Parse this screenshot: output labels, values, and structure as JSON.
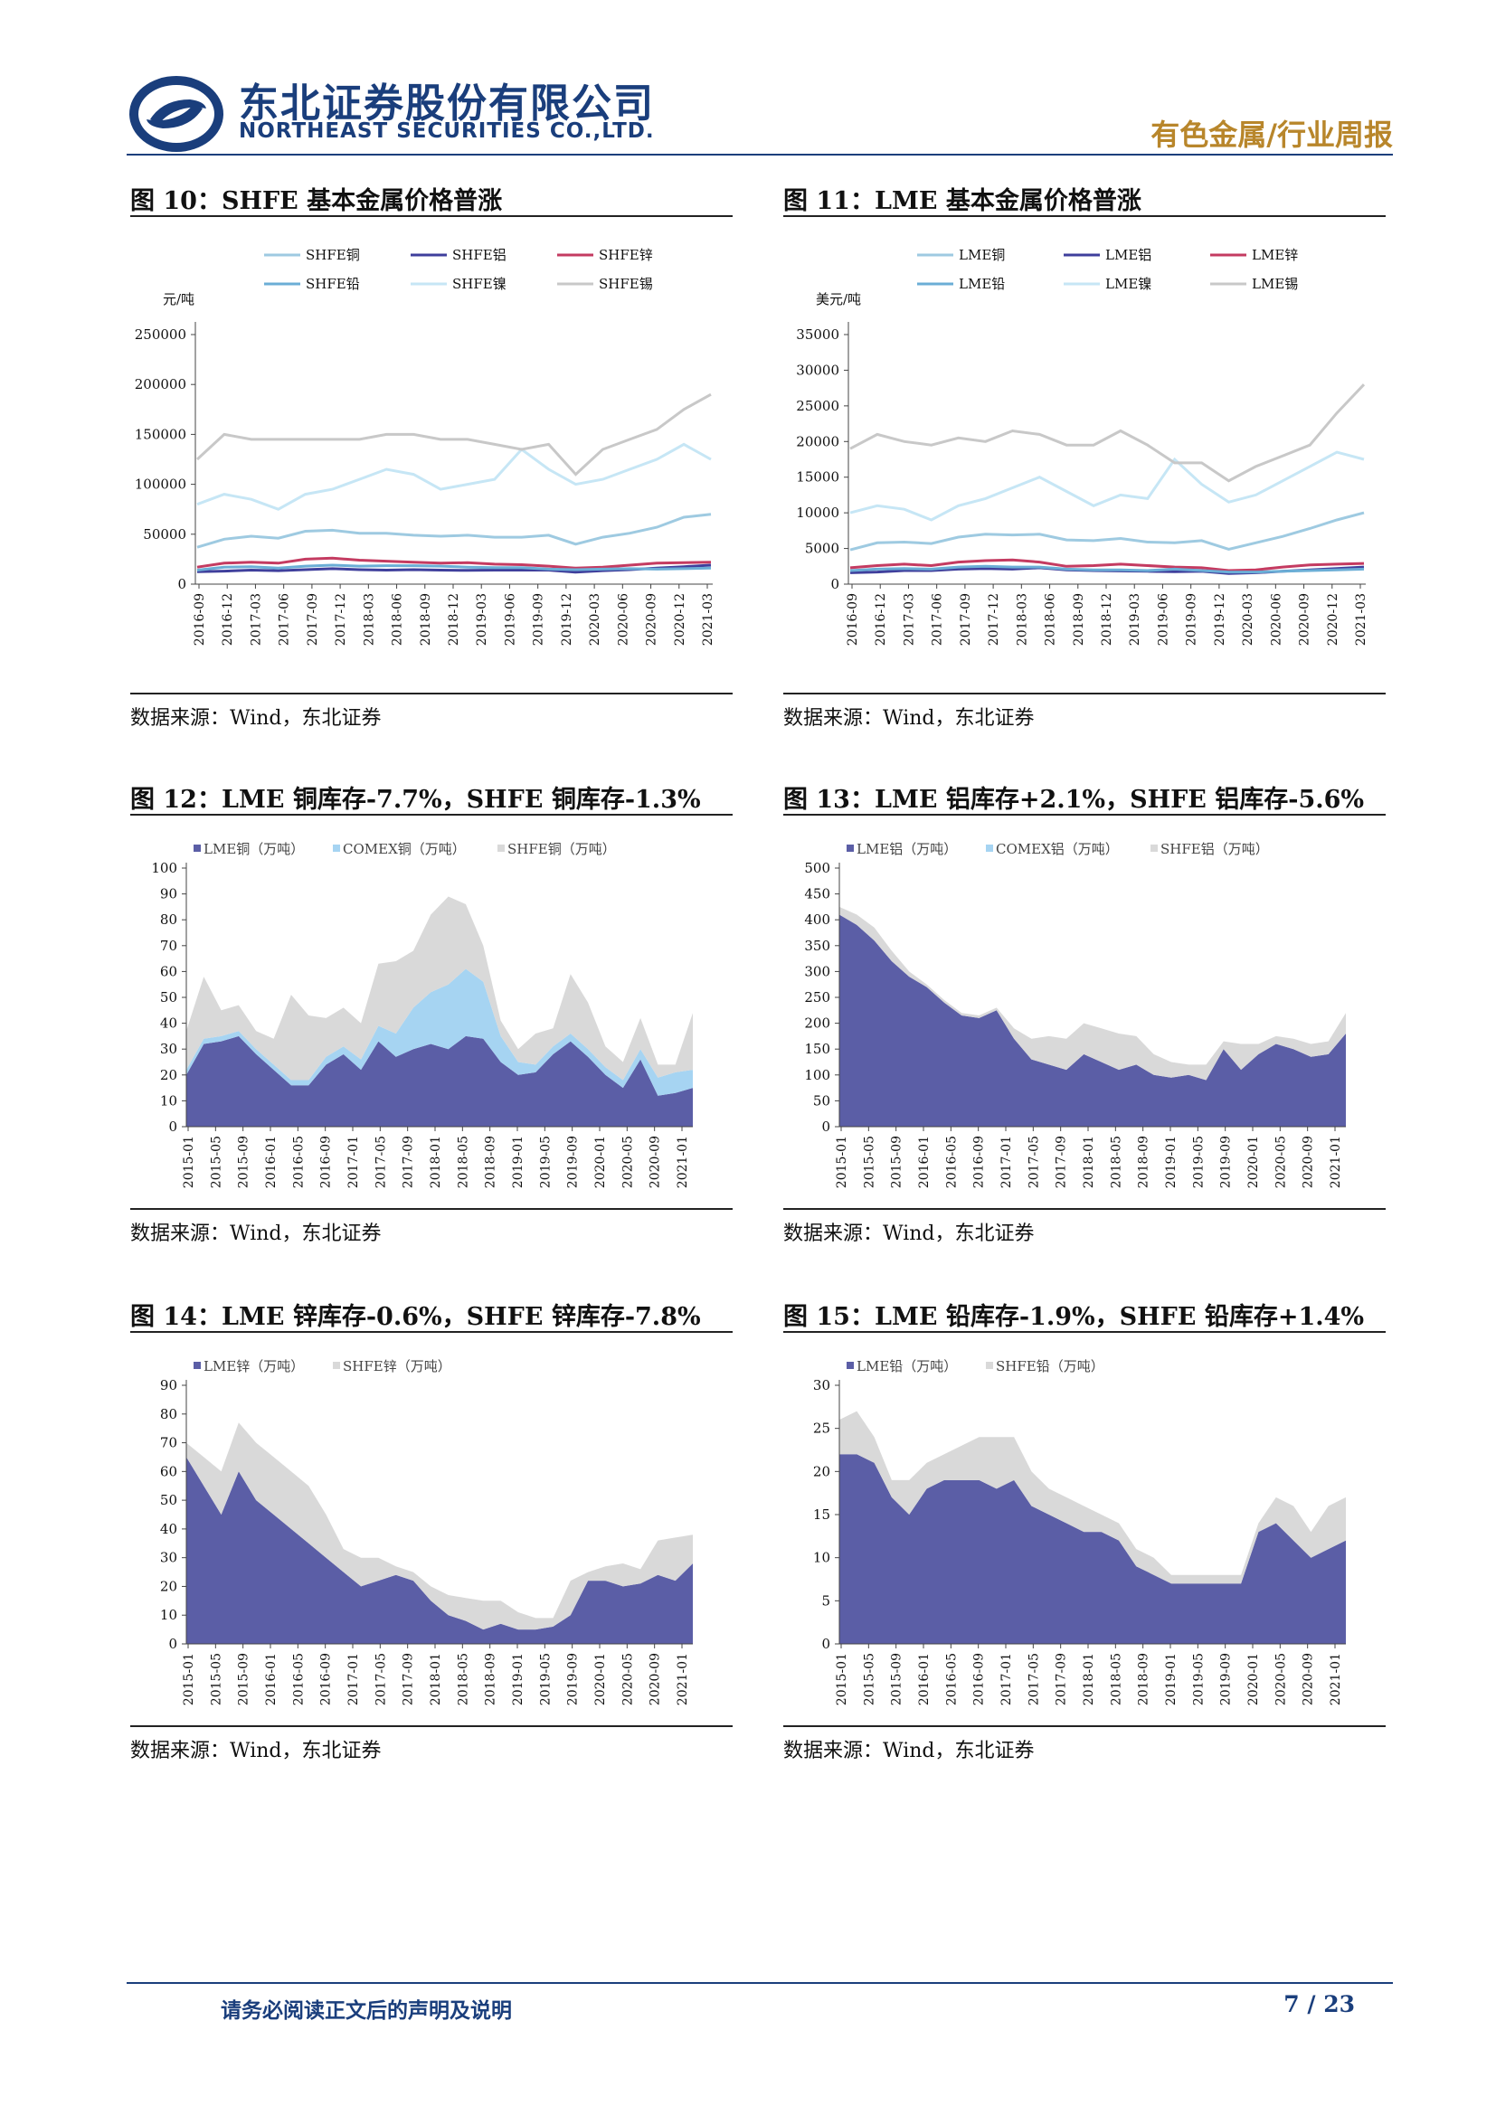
{
  "header": {
    "company_cn": "东北证券股份有限公司",
    "company_en": "NORTHEAST SECURITIES CO.,LTD.",
    "report_type": "有色金属/行业周报"
  },
  "footer": {
    "disclaimer": "请务必阅读正文后的声明及说明",
    "page": "7 / 23"
  },
  "figures": [
    {
      "title": "图  10：SHFE 基本金属价格普涨",
      "source": "数据来源：Wind，东北证券",
      "chart_data": {
        "type": "line",
        "ylabel": "元/吨",
        "ylim": [
          0,
          250000
        ],
        "yticks": [
          0,
          50000,
          100000,
          150000,
          200000,
          250000
        ],
        "x_ticks": [
          "2016-09",
          "2016-12",
          "2017-03",
          "2017-06",
          "2017-09",
          "2017-12",
          "2018-03",
          "2018-06",
          "2018-09",
          "2018-12",
          "2019-03",
          "2019-06",
          "2019-09",
          "2019-12",
          "2020-03",
          "2020-06",
          "2020-09",
          "2020-12",
          "2021-03"
        ],
        "series": [
          {
            "name": "SHFE铜",
            "color": "#9ecae1",
            "values": [
              37000,
              45000,
              48000,
              46000,
              53000,
              54000,
              51000,
              51000,
              49000,
              48000,
              49000,
              47000,
              47000,
              49000,
              40000,
              47000,
              51000,
              57000,
              67000,
              70000
            ]
          },
          {
            "name": "SHFE铝",
            "color": "#3f3f9c",
            "values": [
              12500,
              13000,
              14000,
              13500,
              14500,
              15500,
              14500,
              14000,
              14500,
              14000,
              13800,
              14000,
              14000,
              14000,
              12000,
              13500,
              14500,
              16000,
              17500,
              19000
            ]
          },
          {
            "name": "SHFE锌",
            "color": "#c43b61",
            "values": [
              17000,
              21000,
              22000,
              21000,
              25000,
              26000,
              24000,
              23000,
              22000,
              21000,
              21500,
              20000,
              19500,
              18000,
              16000,
              17000,
              19000,
              21000,
              21500,
              22000
            ]
          },
          {
            "name": "SHFE铅",
            "color": "#6baed6",
            "values": [
              14000,
              17000,
              17500,
              16000,
              18000,
              19000,
              18000,
              18500,
              18500,
              18000,
              17000,
              16500,
              16500,
              15000,
              14500,
              15000,
              15500,
              15000,
              15500,
              16000
            ]
          },
          {
            "name": "SHFE镍",
            "color": "#c6e6f5",
            "values": [
              80000,
              90000,
              85000,
              75000,
              90000,
              95000,
              105000,
              115000,
              110000,
              95000,
              100000,
              105000,
              135000,
              115000,
              100000,
              105000,
              115000,
              125000,
              140000,
              125000
            ]
          },
          {
            "name": "SHFE锡",
            "color": "#c8c8c8",
            "values": [
              125000,
              150000,
              145000,
              145000,
              145000,
              145000,
              145000,
              150000,
              150000,
              145000,
              145000,
              140000,
              135000,
              140000,
              110000,
              135000,
              145000,
              155000,
              175000,
              190000
            ]
          }
        ]
      }
    },
    {
      "title": "图  11：LME 基本金属价格普涨",
      "source": "数据来源：Wind，东北证券",
      "chart_data": {
        "type": "line",
        "ylabel": "美元/吨",
        "ylim": [
          0,
          35000
        ],
        "yticks": [
          0,
          5000,
          10000,
          15000,
          20000,
          25000,
          30000,
          35000
        ],
        "x_ticks": [
          "2016-09",
          "2016-12",
          "2017-03",
          "2017-06",
          "2017-09",
          "2017-12",
          "2018-03",
          "2018-06",
          "2018-09",
          "2018-12",
          "2019-03",
          "2019-06",
          "2019-09",
          "2019-12",
          "2020-03",
          "2020-06",
          "2020-09",
          "2020-12",
          "2021-03"
        ],
        "series": [
          {
            "name": "LME铜",
            "color": "#9ecae1",
            "values": [
              4800,
              5800,
              5900,
              5700,
              6600,
              7000,
              6900,
              7000,
              6200,
              6100,
              6400,
              5900,
              5800,
              6100,
              4900,
              5800,
              6700,
              7800,
              9000,
              10000
            ]
          },
          {
            "name": "LME铝",
            "color": "#3f3f9c",
            "values": [
              1600,
              1700,
              1900,
              1900,
              2100,
              2200,
              2100,
              2300,
              2000,
              1900,
              1850,
              1800,
              1750,
              1800,
              1500,
              1600,
              1800,
              2000,
              2200,
              2400
            ]
          },
          {
            "name": "LME锌",
            "color": "#c43b61",
            "values": [
              2300,
              2600,
              2800,
              2600,
              3100,
              3300,
              3400,
              3100,
              2500,
              2600,
              2800,
              2600,
              2400,
              2300,
              1900,
              2000,
              2400,
              2700,
              2800,
              2900
            ]
          },
          {
            "name": "LME铅",
            "color": "#6baed6",
            "values": [
              1900,
              2100,
              2200,
              2100,
              2400,
              2500,
              2400,
              2400,
              2100,
              2000,
              2000,
              1900,
              2100,
              1900,
              1700,
              1700,
              1800,
              1900,
              2000,
              2100
            ]
          },
          {
            "name": "LME镍",
            "color": "#c6e6f5",
            "values": [
              10000,
              11000,
              10500,
              9000,
              11000,
              12000,
              13500,
              15000,
              13000,
              11000,
              12500,
              12000,
              17500,
              14000,
              11500,
              12500,
              14500,
              16500,
              18500,
              17500
            ]
          },
          {
            "name": "LME锡",
            "color": "#c8c8c8",
            "values": [
              19000,
              21000,
              20000,
              19500,
              20500,
              20000,
              21500,
              21000,
              19500,
              19500,
              21500,
              19500,
              17000,
              17000,
              14500,
              16500,
              18000,
              19500,
              24000,
              28000
            ]
          }
        ]
      }
    },
    {
      "title": "图  12：LME 铜库存-7.7%，SHFE 铜库存-1.3%",
      "source": "数据来源：Wind，东北证券",
      "chart_data": {
        "type": "area",
        "ylim": [
          0,
          100
        ],
        "yticks": [
          0,
          10,
          20,
          30,
          40,
          50,
          60,
          70,
          80,
          90,
          100
        ],
        "x_ticks": [
          "2015-01",
          "2015-05",
          "2015-09",
          "2016-01",
          "2016-05",
          "2016-09",
          "2017-01",
          "2017-05",
          "2017-09",
          "2018-01",
          "2018-05",
          "2018-09",
          "2019-01",
          "2019-05",
          "2019-09",
          "2020-01",
          "2020-05",
          "2020-09",
          "2021-01"
        ],
        "series": [
          {
            "name": "LME铜（万吨）",
            "color": "#5b5ea6",
            "values": [
              20,
              32,
              33,
              35,
              28,
              22,
              16,
              16,
              24,
              28,
              22,
              33,
              27,
              30,
              32,
              30,
              35,
              34,
              25,
              20,
              21,
              28,
              33,
              27,
              20,
              15,
              26,
              12,
              13,
              15
            ]
          },
          {
            "name": "COMEX铜（万吨）",
            "color": "#a6d4f2",
            "values": [
              2,
              2,
              2,
              2,
              2,
              2,
              2,
              2,
              3,
              3,
              4,
              6,
              9,
              16,
              20,
              25,
              26,
              22,
              10,
              5,
              3,
              3,
              3,
              3,
              3,
              3,
              4,
              7,
              8,
              7
            ]
          },
          {
            "name": "SHFE铜（万吨）",
            "color": "#d9d9d9",
            "values": [
              15,
              24,
              10,
              10,
              7,
              10,
              33,
              25,
              15,
              15,
              14,
              24,
              28,
              22,
              30,
              34,
              25,
              14,
              6,
              5,
              12,
              7,
              23,
              18,
              8,
              7,
              12,
              5,
              3,
              22
            ]
          }
        ]
      }
    },
    {
      "title": "图  13：LME 铝库存+2.1%，SHFE 铝库存-5.6%",
      "source": "数据来源：Wind，东北证券",
      "chart_data": {
        "type": "area",
        "ylim": [
          0,
          500
        ],
        "yticks": [
          0,
          50,
          100,
          150,
          200,
          250,
          300,
          350,
          400,
          450,
          500
        ],
        "x_ticks": [
          "2015-01",
          "2015-05",
          "2015-09",
          "2016-01",
          "2016-05",
          "2016-09",
          "2017-01",
          "2017-05",
          "2017-09",
          "2018-01",
          "2018-05",
          "2018-09",
          "2019-01",
          "2019-05",
          "2019-09",
          "2020-01",
          "2020-05",
          "2020-09",
          "2021-01"
        ],
        "series": [
          {
            "name": "LME铝（万吨）",
            "color": "#5b5ea6",
            "values": [
              410,
              390,
              360,
              320,
              290,
              270,
              240,
              215,
              210,
              225,
              170,
              130,
              120,
              110,
              140,
              125,
              110,
              120,
              100,
              95,
              100,
              90,
              150,
              110,
              140,
              160,
              150,
              135,
              140,
              180
            ]
          },
          {
            "name": "COMEX铝（万吨）",
            "color": "#a6d4f2",
            "values": [
              0,
              0,
              0,
              0,
              0,
              0,
              0,
              0,
              0,
              0,
              0,
              0,
              0,
              0,
              0,
              0,
              0,
              0,
              0,
              0,
              0,
              0,
              0,
              0,
              0,
              0,
              0,
              0,
              0,
              0
            ]
          },
          {
            "name": "SHFE铝（万吨）",
            "color": "#d9d9d9",
            "values": [
              15,
              20,
              25,
              20,
              10,
              5,
              5,
              5,
              5,
              5,
              20,
              40,
              55,
              60,
              60,
              65,
              70,
              55,
              40,
              30,
              20,
              30,
              15,
              50,
              20,
              15,
              20,
              25,
              25,
              40
            ]
          }
        ]
      }
    },
    {
      "title": "图  14：LME 锌库存-0.6%，SHFE 锌库存-7.8%",
      "source": "数据来源：Wind，东北证券",
      "chart_data": {
        "type": "area",
        "ylim": [
          0,
          90
        ],
        "yticks": [
          0,
          10,
          20,
          30,
          40,
          50,
          60,
          70,
          80,
          90
        ],
        "x_ticks": [
          "2015-01",
          "2015-05",
          "2015-09",
          "2016-01",
          "2016-05",
          "2016-09",
          "2017-01",
          "2017-05",
          "2017-09",
          "2018-01",
          "2018-05",
          "2018-09",
          "2019-01",
          "2019-05",
          "2019-09",
          "2020-01",
          "2020-05",
          "2020-09",
          "2021-01"
        ],
        "series": [
          {
            "name": "LME锌（万吨）",
            "color": "#5b5ea6",
            "values": [
              65,
              55,
              45,
              60,
              50,
              45,
              40,
              35,
              30,
              25,
              20,
              22,
              24,
              22,
              15,
              10,
              8,
              5,
              7,
              5,
              5,
              6,
              10,
              22,
              22,
              20,
              21,
              24,
              22,
              28
            ]
          },
          {
            "name": "SHFE锌（万吨）",
            "color": "#d9d9d9",
            "values": [
              5,
              10,
              15,
              17,
              20,
              20,
              20,
              20,
              15,
              8,
              10,
              8,
              3,
              3,
              5,
              7,
              8,
              10,
              8,
              6,
              4,
              3,
              12,
              3,
              5,
              8,
              5,
              12,
              15,
              10
            ]
          }
        ]
      }
    },
    {
      "title": "图  15：LME 铅库存-1.9%，SHFE 铅库存+1.4%",
      "source": "数据来源：Wind，东北证券",
      "chart_data": {
        "type": "area",
        "ylim": [
          0,
          30
        ],
        "yticks": [
          0,
          5,
          10,
          15,
          20,
          25,
          30
        ],
        "x_ticks": [
          "2015-01",
          "2015-05",
          "2015-09",
          "2016-01",
          "2016-05",
          "2016-09",
          "2017-01",
          "2017-05",
          "2017-09",
          "2018-01",
          "2018-05",
          "2018-09",
          "2019-01",
          "2019-05",
          "2019-09",
          "2020-01",
          "2020-05",
          "2020-09",
          "2021-01"
        ],
        "series": [
          {
            "name": "LME铅（万吨）",
            "color": "#5b5ea6",
            "values": [
              22,
              22,
              21,
              17,
              15,
              18,
              19,
              19,
              19,
              18,
              19,
              16,
              15,
              14,
              13,
              13,
              12,
              9,
              8,
              7,
              7,
              7,
              7,
              7,
              13,
              14,
              12,
              10,
              11,
              12
            ]
          },
          {
            "name": "SHFE铅（万吨）",
            "color": "#d9d9d9",
            "values": [
              4,
              5,
              3,
              2,
              4,
              3,
              3,
              4,
              5,
              6,
              5,
              4,
              3,
              3,
              3,
              2,
              2,
              2,
              2,
              1,
              1,
              1,
              1,
              1,
              1,
              3,
              4,
              3,
              5,
              5
            ]
          }
        ]
      }
    }
  ]
}
